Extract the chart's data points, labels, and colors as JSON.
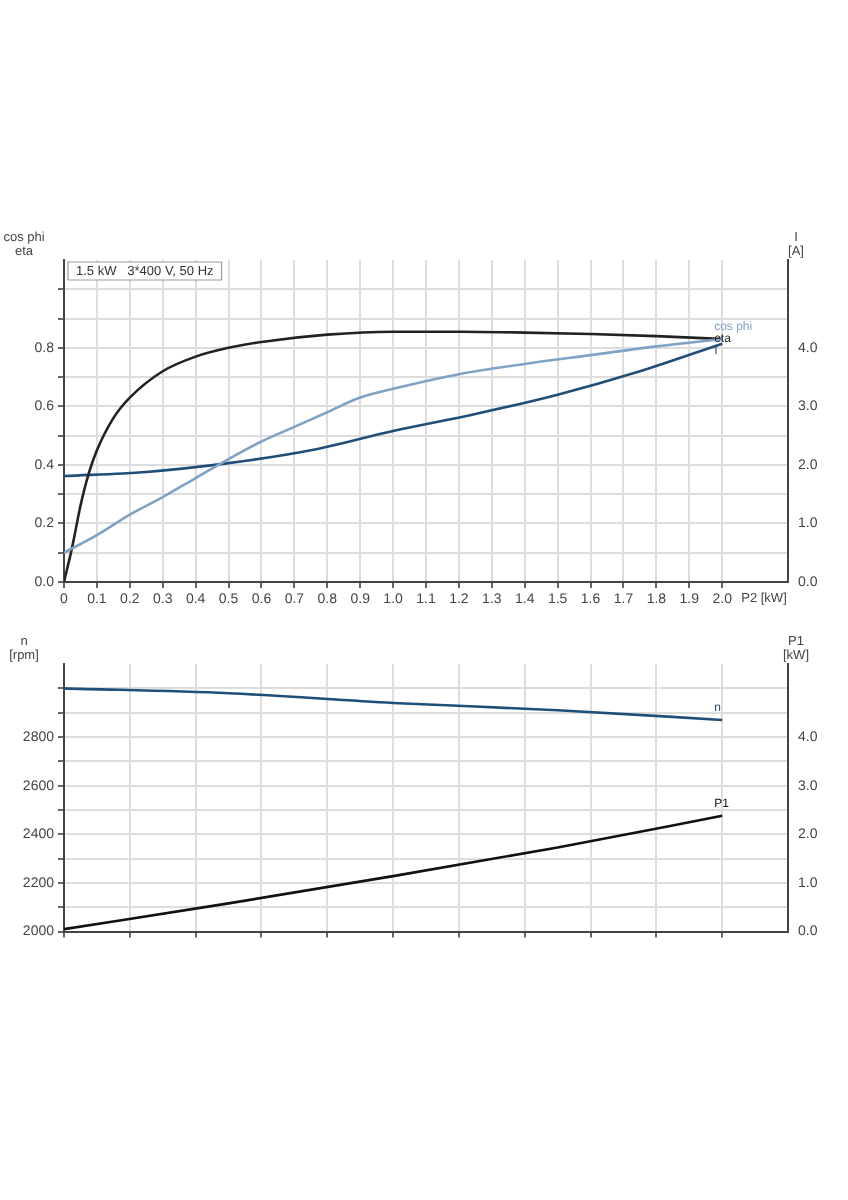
{
  "chart_data": [
    {
      "type": "line",
      "title": "1.5 kW   3*400 V, 50 Hz",
      "xlabel": "P2 [kW]",
      "ylabel": "cos phi\neta",
      "y2label": "I\n[A]",
      "xlim": [
        0,
        2.2
      ],
      "xticks": [
        0,
        0.1,
        0.2,
        0.3,
        0.4,
        0.5,
        0.6,
        0.7,
        0.8,
        0.9,
        {
          "value": 1,
          "label": "1.0"
        },
        1.1,
        1.2,
        1.3,
        1.4,
        1.5,
        1.6,
        1.7,
        1.8,
        1.9,
        {
          "value": 2,
          "label": "2.0"
        }
      ],
      "ylim": [
        0,
        1.1
      ],
      "yticks": [
        {
          "value": 0,
          "label": "0.0"
        },
        {
          "value": 0.1,
          "label": null
        },
        0.2,
        {
          "value": 0.3,
          "label": null
        },
        0.4,
        {
          "value": 0.5,
          "label": null
        },
        0.6,
        {
          "value": 0.7,
          "label": null
        },
        0.8,
        {
          "value": 0.9,
          "label": null
        },
        {
          "value": 1,
          "label": null
        }
      ],
      "y2lim": [
        0,
        5.5
      ],
      "y2ticks": [
        {
          "value": 0,
          "label": "0.0"
        },
        {
          "value": 1,
          "label": "1.0"
        },
        {
          "value": 2,
          "label": "2.0"
        },
        {
          "value": 3,
          "label": "3.0"
        },
        {
          "value": 4,
          "label": "4.0"
        }
      ],
      "grid": true,
      "legend": false,
      "marker": "none",
      "line_style": "solid",
      "series": [
        {
          "name": "cos phi",
          "color": "#7fa3c6",
          "x": [
            0,
            0.1,
            0.2,
            0.3,
            0.4,
            0.5,
            0.6,
            0.7,
            0.8,
            0.9,
            1.0,
            1.2,
            1.4,
            1.6,
            1.8,
            2.0
          ],
          "values": [
            0.1,
            0.16,
            0.23,
            0.29,
            0.355,
            0.42,
            0.48,
            0.53,
            0.58,
            0.63,
            0.66,
            0.71,
            0.745,
            0.775,
            0.805,
            0.83
          ]
        },
        {
          "name": "eta",
          "color": "#222222",
          "x": [
            0,
            0.025,
            0.05,
            0.075,
            0.1,
            0.15,
            0.2,
            0.3,
            0.4,
            0.5,
            0.6,
            0.8,
            1.0,
            1.2,
            1.4,
            1.6,
            1.8,
            2.0
          ],
          "values": [
            0,
            0.12,
            0.26,
            0.37,
            0.45,
            0.56,
            0.63,
            0.72,
            0.77,
            0.8,
            0.82,
            0.845,
            0.855,
            0.855,
            0.852,
            0.847,
            0.84,
            0.83
          ]
        },
        {
          "name": "I",
          "color": "#1f4e79",
          "axis": "y2",
          "x": [
            0,
            0.25,
            0.5,
            0.75,
            1.0,
            1.25,
            1.5,
            1.75,
            2.0
          ],
          "values": [
            1.81,
            1.88,
            2.03,
            2.25,
            2.58,
            2.87,
            3.2,
            3.6,
            4.07
          ]
        }
      ]
    },
    {
      "type": "line",
      "ylabel": "n\n[rpm]",
      "y2label": "P1\n[kW]",
      "tick_labels": "y",
      "xlim": [
        0,
        2.2
      ],
      "xticks": [
        {
          "value": 0,
          "label": null
        },
        {
          "value": 0.2,
          "label": null
        },
        {
          "value": 0.4,
          "label": null
        },
        {
          "value": 0.6,
          "label": null
        },
        {
          "value": 0.8,
          "label": null
        },
        {
          "value": 1,
          "label": null
        },
        {
          "value": 1.2,
          "label": null
        },
        {
          "value": 1.4,
          "label": null
        },
        {
          "value": 1.6,
          "label": null
        },
        {
          "value": 1.8,
          "label": null
        },
        {
          "value": 2,
          "label": null
        }
      ],
      "ylim": [
        2000,
        3100
      ],
      "yticks": [
        2000,
        {
          "value": 2100,
          "label": null
        },
        2200,
        {
          "value": 2300,
          "label": null
        },
        2400,
        {
          "value": 2500,
          "label": null
        },
        2600,
        {
          "value": 2700,
          "label": null
        },
        2800,
        {
          "value": 2900,
          "label": null
        },
        {
          "value": 3000,
          "label": null
        }
      ],
      "y2lim": [
        0,
        5.5
      ],
      "y2ticks": [
        {
          "value": 0,
          "label": "0.0"
        },
        {
          "value": 1,
          "label": "1.0"
        },
        {
          "value": 2,
          "label": "2.0"
        },
        {
          "value": 3,
          "label": "3.0"
        },
        {
          "value": 4,
          "label": "4.0"
        }
      ],
      "grid": true,
      "legend": false,
      "marker": "none",
      "line_style": "solid",
      "series": [
        {
          "name": "n",
          "color": "#1f4e79",
          "x": [
            0,
            0.5,
            1.0,
            1.5,
            2.0
          ],
          "values": [
            3000,
            2980,
            2940,
            2910,
            2870
          ]
        },
        {
          "name": "P1",
          "color": "#111111",
          "axis": "y2",
          "x": [
            0,
            0.5,
            1.0,
            1.5,
            2.0
          ],
          "values": [
            0.05,
            0.58,
            1.14,
            1.73,
            2.38
          ]
        }
      ]
    }
  ]
}
